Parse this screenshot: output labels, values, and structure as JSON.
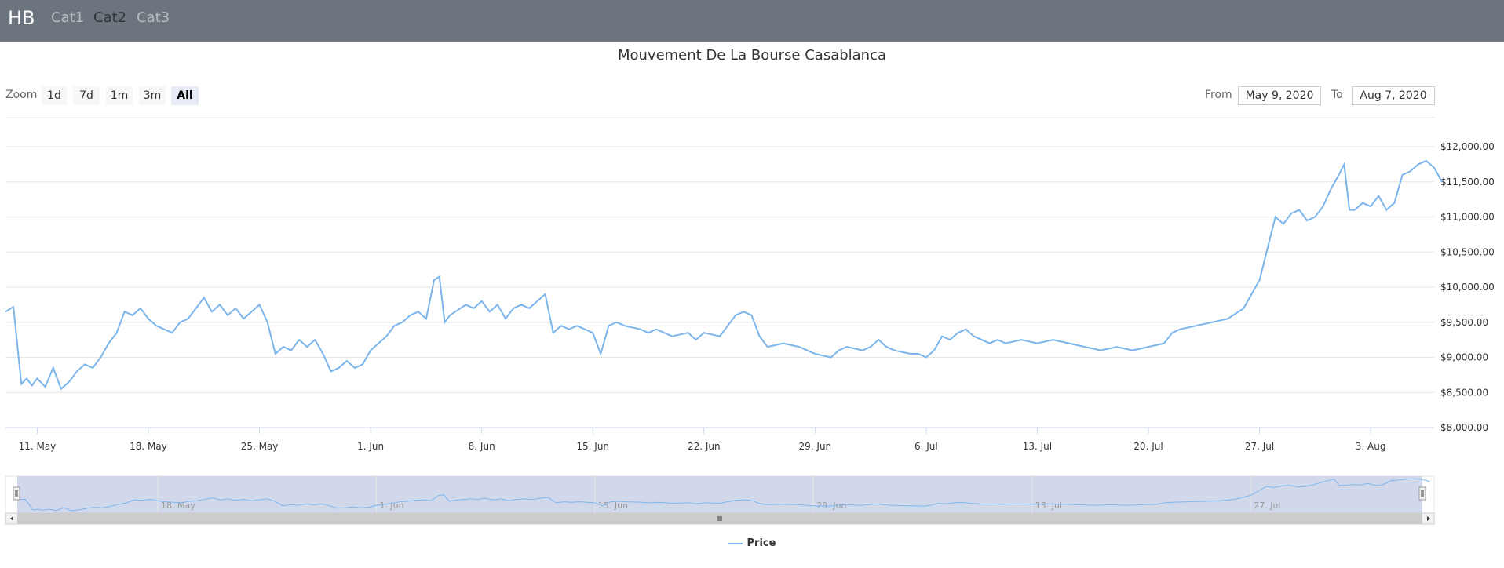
{
  "navbar": {
    "brand": "HB",
    "links": [
      {
        "label": "Cat1",
        "active": false
      },
      {
        "label": "Cat2",
        "active": true
      },
      {
        "label": "Cat3",
        "active": false
      }
    ]
  },
  "range_selector": {
    "zoom_label": "Zoom",
    "buttons": [
      "1d",
      "7d",
      "1m",
      "3m",
      "All"
    ],
    "selected": "All",
    "from_label": "From",
    "from_value": "May 9, 2020",
    "to_label": "To",
    "to_value": "Aug 7, 2020"
  },
  "colors": {
    "series": "#7cb5ec",
    "navbar": "#6c757d",
    "navigator_mask": "#cfd6ea"
  },
  "chart_data": {
    "type": "line",
    "title": "Mouvement De La Bourse Casablanca",
    "series": [
      {
        "name": "Price"
      }
    ],
    "ylim": [
      8000,
      12000
    ],
    "yticks": [
      8000,
      8500,
      9000,
      9500,
      10000,
      10500,
      11000,
      11500,
      12000
    ],
    "ytick_labels": [
      "$8,000.00",
      "$8,500.00",
      "$9,000.00",
      "$9,500.00",
      "$10,000.00",
      "$10,500.00",
      "$11,000.00",
      "$11,500.00",
      "$12,000.00"
    ],
    "xlim": [
      "2020-05-09",
      "2020-08-07"
    ],
    "xticks": [
      "2020-05-11",
      "2020-05-18",
      "2020-05-25",
      "2020-06-01",
      "2020-06-08",
      "2020-06-15",
      "2020-06-22",
      "2020-06-29",
      "2020-07-06",
      "2020-07-13",
      "2020-07-20",
      "2020-07-27",
      "2020-08-03"
    ],
    "xtick_labels": [
      "11. May",
      "18. May",
      "25. May",
      "1. Jun",
      "8. Jun",
      "15. Jun",
      "22. Jun",
      "29. Jun",
      "6. Jul",
      "13. Jul",
      "20. Jul",
      "27. Jul",
      "3. Aug"
    ],
    "navigator_labels": [
      "18. May",
      "1. Jun",
      "15. Jun",
      "29. Jun",
      "13. Jul",
      "27. Jul"
    ],
    "navigator_ticks": [
      "2020-05-18",
      "2020-06-01",
      "2020-06-15",
      "2020-06-29",
      "2020-07-13",
      "2020-07-27"
    ],
    "points": [
      [
        "2020-05-09",
        9650
      ],
      [
        "2020-05-09",
        9720
      ],
      [
        "2020-05-10",
        8620
      ],
      [
        "2020-05-10",
        8700
      ],
      [
        "2020-05-10",
        8600
      ],
      [
        "2020-05-11",
        8700
      ],
      [
        "2020-05-11",
        8580
      ],
      [
        "2020-05-12",
        8850
      ],
      [
        "2020-05-12",
        8550
      ],
      [
        "2020-05-13",
        8650
      ],
      [
        "2020-05-13",
        8800
      ],
      [
        "2020-05-14",
        8900
      ],
      [
        "2020-05-14",
        8850
      ],
      [
        "2020-05-15",
        9000
      ],
      [
        "2020-05-15",
        9200
      ],
      [
        "2020-05-16",
        9350
      ],
      [
        "2020-05-16",
        9650
      ],
      [
        "2020-05-17",
        9600
      ],
      [
        "2020-05-17",
        9700
      ],
      [
        "2020-05-18",
        9550
      ],
      [
        "2020-05-18",
        9450
      ],
      [
        "2020-05-19",
        9400
      ],
      [
        "2020-05-19",
        9350
      ],
      [
        "2020-05-20",
        9500
      ],
      [
        "2020-05-20",
        9550
      ],
      [
        "2020-05-21",
        9700
      ],
      [
        "2020-05-21",
        9850
      ],
      [
        "2020-05-22",
        9650
      ],
      [
        "2020-05-22",
        9750
      ],
      [
        "2020-05-23",
        9600
      ],
      [
        "2020-05-23",
        9700
      ],
      [
        "2020-05-24",
        9550
      ],
      [
        "2020-05-25",
        9750
      ],
      [
        "2020-05-25",
        9500
      ],
      [
        "2020-05-26",
        9050
      ],
      [
        "2020-05-26",
        9150
      ],
      [
        "2020-05-27",
        9100
      ],
      [
        "2020-05-27",
        9250
      ],
      [
        "2020-05-28",
        9150
      ],
      [
        "2020-05-28",
        9250
      ],
      [
        "2020-05-29",
        9050
      ],
      [
        "2020-05-29",
        8800
      ],
      [
        "2020-05-30",
        8850
      ],
      [
        "2020-05-30",
        8950
      ],
      [
        "2020-05-31",
        8850
      ],
      [
        "2020-05-31",
        8900
      ],
      [
        "2020-06-01",
        9100
      ],
      [
        "2020-06-01",
        9200
      ],
      [
        "2020-06-02",
        9300
      ],
      [
        "2020-06-02",
        9450
      ],
      [
        "2020-06-03",
        9500
      ],
      [
        "2020-06-03",
        9600
      ],
      [
        "2020-06-04",
        9650
      ],
      [
        "2020-06-04",
        9550
      ],
      [
        "2020-06-05",
        10100
      ],
      [
        "2020-06-05",
        10150
      ],
      [
        "2020-06-05",
        9500
      ],
      [
        "2020-06-06",
        9600
      ],
      [
        "2020-06-07",
        9750
      ],
      [
        "2020-06-07",
        9700
      ],
      [
        "2020-06-08",
        9800
      ],
      [
        "2020-06-08",
        9650
      ],
      [
        "2020-06-09",
        9750
      ],
      [
        "2020-06-09",
        9550
      ],
      [
        "2020-06-10",
        9700
      ],
      [
        "2020-06-10",
        9750
      ],
      [
        "2020-06-11",
        9700
      ],
      [
        "2020-06-11",
        9800
      ],
      [
        "2020-06-12",
        9900
      ],
      [
        "2020-06-12",
        9350
      ],
      [
        "2020-06-13",
        9450
      ],
      [
        "2020-06-13",
        9400
      ],
      [
        "2020-06-14",
        9450
      ],
      [
        "2020-06-14",
        9400
      ],
      [
        "2020-06-15",
        9350
      ],
      [
        "2020-06-15",
        9050
      ],
      [
        "2020-06-16",
        9450
      ],
      [
        "2020-06-16",
        9500
      ],
      [
        "2020-06-17",
        9450
      ],
      [
        "2020-06-18",
        9400
      ],
      [
        "2020-06-18",
        9350
      ],
      [
        "2020-06-19",
        9400
      ],
      [
        "2020-06-20",
        9300
      ],
      [
        "2020-06-21",
        9350
      ],
      [
        "2020-06-21",
        9250
      ],
      [
        "2020-06-22",
        9350
      ],
      [
        "2020-06-23",
        9300
      ],
      [
        "2020-06-23",
        9450
      ],
      [
        "2020-06-24",
        9600
      ],
      [
        "2020-06-24",
        9650
      ],
      [
        "2020-06-25",
        9600
      ],
      [
        "2020-06-25",
        9300
      ],
      [
        "2020-06-26",
        9150
      ],
      [
        "2020-06-27",
        9200
      ],
      [
        "2020-06-28",
        9150
      ],
      [
        "2020-06-28",
        9100
      ],
      [
        "2020-06-29",
        9050
      ],
      [
        "2020-06-30",
        9000
      ],
      [
        "2020-06-30",
        9100
      ],
      [
        "2020-07-01",
        9150
      ],
      [
        "2020-07-02",
        9100
      ],
      [
        "2020-07-02",
        9150
      ],
      [
        "2020-07-03",
        9250
      ],
      [
        "2020-07-03",
        9150
      ],
      [
        "2020-07-04",
        9100
      ],
      [
        "2020-07-05",
        9050
      ],
      [
        "2020-07-05",
        9050
      ],
      [
        "2020-07-06",
        9000
      ],
      [
        "2020-07-06",
        9100
      ],
      [
        "2020-07-07",
        9300
      ],
      [
        "2020-07-07",
        9250
      ],
      [
        "2020-07-08",
        9350
      ],
      [
        "2020-07-08",
        9400
      ],
      [
        "2020-07-09",
        9300
      ],
      [
        "2020-07-10",
        9200
      ],
      [
        "2020-07-10",
        9250
      ],
      [
        "2020-07-11",
        9200
      ],
      [
        "2020-07-12",
        9250
      ],
      [
        "2020-07-13",
        9200
      ],
      [
        "2020-07-14",
        9250
      ],
      [
        "2020-07-15",
        9200
      ],
      [
        "2020-07-16",
        9150
      ],
      [
        "2020-07-17",
        9100
      ],
      [
        "2020-07-18",
        9150
      ],
      [
        "2020-07-19",
        9100
      ],
      [
        "2020-07-20",
        9150
      ],
      [
        "2020-07-21",
        9200
      ],
      [
        "2020-07-21",
        9350
      ],
      [
        "2020-07-22",
        9400
      ],
      [
        "2020-07-23",
        9450
      ],
      [
        "2020-07-24",
        9500
      ],
      [
        "2020-07-25",
        9550
      ],
      [
        "2020-07-26",
        9700
      ],
      [
        "2020-07-26",
        9900
      ],
      [
        "2020-07-27",
        10100
      ],
      [
        "2020-07-27",
        10550
      ],
      [
        "2020-07-28",
        11000
      ],
      [
        "2020-07-28",
        10900
      ],
      [
        "2020-07-29",
        11050
      ],
      [
        "2020-07-29",
        11100
      ],
      [
        "2020-07-30",
        10950
      ],
      [
        "2020-07-30",
        11000
      ],
      [
        "2020-07-31",
        11150
      ],
      [
        "2020-07-31",
        11400
      ],
      [
        "2020-08-01",
        11600
      ],
      [
        "2020-08-01",
        11750
      ],
      [
        "2020-08-01",
        11100
      ],
      [
        "2020-08-02",
        11100
      ],
      [
        "2020-08-02",
        11200
      ],
      [
        "2020-08-03",
        11150
      ],
      [
        "2020-08-03",
        11300
      ],
      [
        "2020-08-04",
        11100
      ],
      [
        "2020-08-04",
        11200
      ],
      [
        "2020-08-05",
        11600
      ],
      [
        "2020-08-05",
        11650
      ],
      [
        "2020-08-06",
        11750
      ],
      [
        "2020-08-06",
        11800
      ],
      [
        "2020-08-07",
        11700
      ],
      [
        "2020-08-07",
        11500
      ]
    ],
    "grid": true,
    "legend": "bottom"
  }
}
